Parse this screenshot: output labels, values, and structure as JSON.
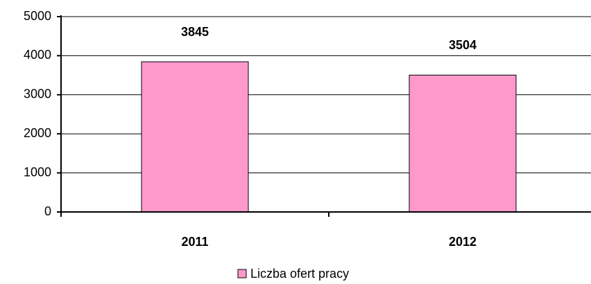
{
  "chart_data": {
    "type": "bar",
    "categories": [
      "2011",
      "2012"
    ],
    "series": [
      {
        "name": "Liczba ofert pracy",
        "color": "#ff99cc",
        "values": [
          3845,
          3504
        ]
      }
    ],
    "ylim": [
      0,
      5000
    ],
    "yticks": [
      0,
      1000,
      2000,
      3000,
      4000,
      5000
    ],
    "grid": true,
    "legend": "bottom"
  }
}
